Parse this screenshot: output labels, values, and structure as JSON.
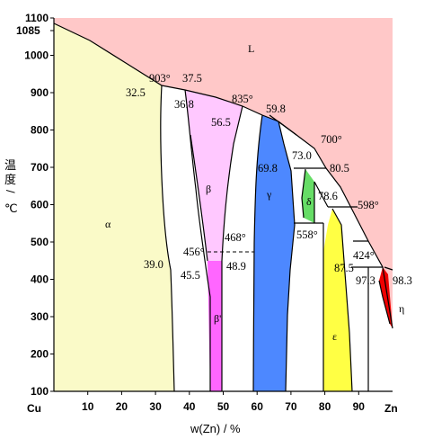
{
  "axes": {
    "x": {
      "left_label": "Cu",
      "right_label": "Zn",
      "ticks": [
        "10",
        "20",
        "30",
        "40",
        "50",
        "60",
        "70",
        "80",
        "90"
      ],
      "title": "w(Zn) / %",
      "range": [
        0,
        100
      ]
    },
    "y": {
      "ticks": [
        "100",
        "200",
        "300",
        "400",
        "500",
        "600",
        "700",
        "800",
        "900",
        "1000",
        "1100"
      ],
      "special_tick": "1085",
      "title_chars": [
        "温",
        "度",
        "/",
        "℃"
      ],
      "range": [
        100,
        1100
      ]
    }
  },
  "phases": [
    {
      "key": "L",
      "label": "L",
      "color": "#ffc8c8"
    },
    {
      "key": "alpha",
      "label": "α",
      "color": "#fafac8"
    },
    {
      "key": "beta",
      "label": "β",
      "color": "#ffc8ff"
    },
    {
      "key": "beta_prime",
      "label": "β'",
      "color": "#ff66ff"
    },
    {
      "key": "gamma",
      "label": "γ",
      "color": "#4d88ff"
    },
    {
      "key": "delta",
      "label": "δ",
      "color": "#66dd66"
    },
    {
      "key": "epsilon",
      "label": "ε",
      "color": "#ffff44"
    },
    {
      "key": "eta",
      "label": "η",
      "color": "#ee0000"
    }
  ],
  "annotations": {
    "t903": "903°",
    "c37_5": "37.5",
    "c32_5": "32.5",
    "c36_8": "36.8",
    "t835": "835°",
    "c56_5": "56.5",
    "c59_8": "59.8",
    "t700": "700°",
    "c73_0": "73.0",
    "c69_8": "69.8",
    "c80_5": "80.5",
    "c78_6": "78.6",
    "t598": "598°",
    "t558": "558°",
    "t468": "468°",
    "t456": "456°",
    "c39_0": "39.0",
    "c45_5": "45.5",
    "c48_9": "48.9",
    "c87_5": "87.5",
    "t424": "424°",
    "c97_3": "97.3",
    "c98_3": "98.3"
  }
}
